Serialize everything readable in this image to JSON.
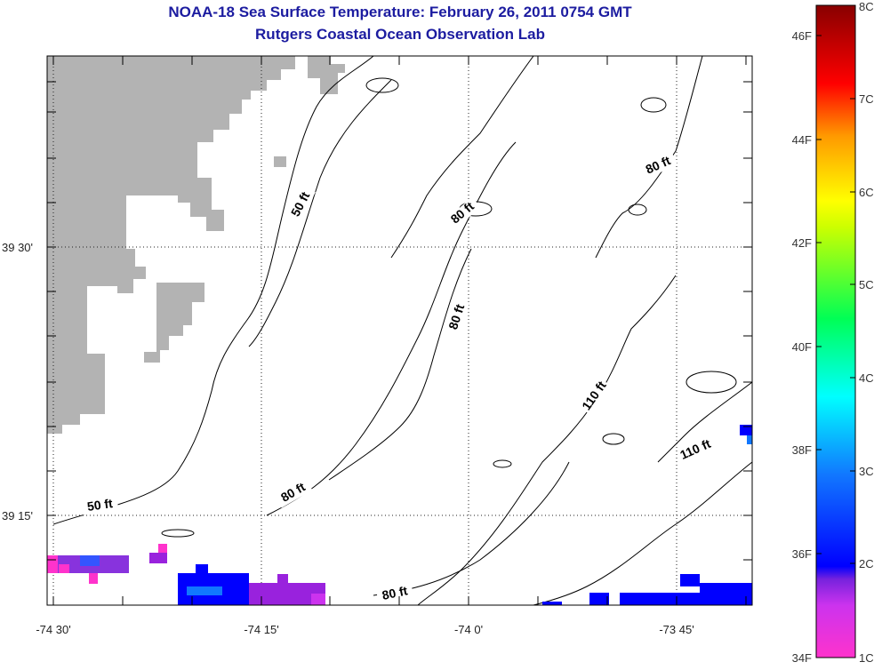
{
  "header": {
    "title": "NOAA-18 Sea Surface Temperature:  February 26, 2011 0754 GMT",
    "subtitle": "Rutgers Coastal Ocean Observation Lab"
  },
  "map": {
    "lon_ticks": [
      "-74 30'",
      "-74 15'",
      "-74 0'",
      "-73 45'"
    ],
    "lat_ticks": [
      "39 30'",
      "39 15'"
    ],
    "contour_labels": [
      "50 ft",
      "50 ft",
      "80 ft",
      "80 ft",
      "80 ft",
      "80 ft",
      "80 ft",
      "110 ft",
      "110 ft"
    ],
    "land_color": "#b3b3b3",
    "graticule": "dotted"
  },
  "colorbar": {
    "celsius_labels": [
      "8C",
      "7C",
      "6C",
      "5C",
      "4C",
      "3C",
      "2C",
      "1C"
    ],
    "fahrenheit_labels": [
      "46F",
      "44F",
      "42F",
      "40F",
      "38F",
      "36F",
      "34F"
    ],
    "colors": [
      "#8b0000",
      "#ff0000",
      "#ff8c00",
      "#ffff00",
      "#00ff40",
      "#00ffff",
      "#0044ff",
      "#9922dd",
      "#ff33cc"
    ]
  }
}
